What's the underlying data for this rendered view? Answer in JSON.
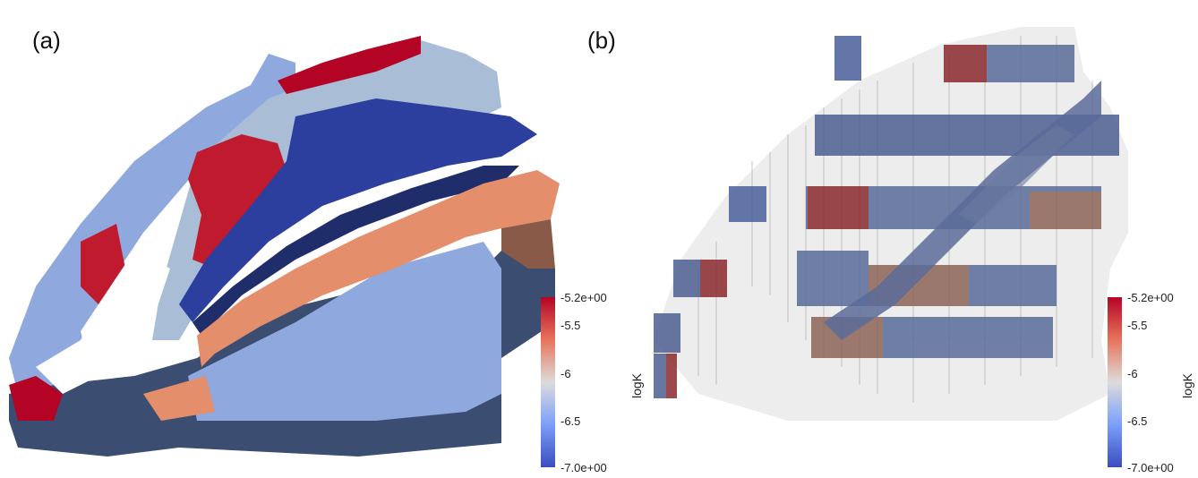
{
  "panels": [
    {
      "label": "(a)"
    },
    {
      "label": "(b)"
    }
  ],
  "colorbar": {
    "title": "logK",
    "ticks": [
      "-5.2e+00",
      "-5.5",
      "-6",
      "-6.5",
      "-7.0e+00"
    ],
    "colors": {
      "high": "#b40426",
      "mid_high": "#e7745b",
      "mid": "#dddcdc",
      "mid_low": "#7b9ff9",
      "low": "#3b4cc0"
    }
  }
}
